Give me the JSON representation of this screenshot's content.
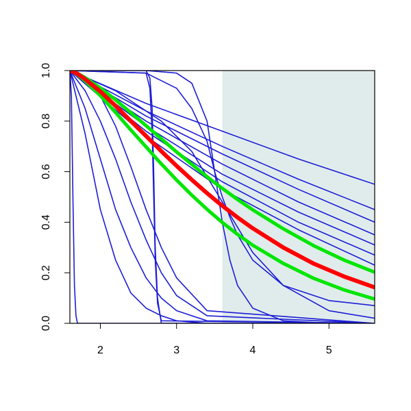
{
  "chart_data": {
    "type": "line",
    "xlim": [
      1.6,
      5.6
    ],
    "ylim": [
      0,
      1
    ],
    "xticks": [
      2,
      3,
      4,
      5
    ],
    "yticks": [
      {
        "value": 0,
        "label": "0.0"
      },
      {
        "value": 0.2,
        "label": "0.2"
      },
      {
        "value": 0.4,
        "label": "0.4"
      },
      {
        "value": 0.6,
        "label": "0.6"
      },
      {
        "value": 0.8,
        "label": "0.8"
      },
      {
        "value": 1,
        "label": "1.0"
      }
    ],
    "shaded_region": {
      "x": [
        3.6,
        5.6
      ],
      "color": "#e0ecec"
    },
    "series": [
      {
        "color": "#1c1cd6",
        "width": 1.6,
        "x": [
          1.6,
          2.6,
          3.6,
          4.6,
          5.6
        ],
        "values": [
          1,
          0.87,
          0.76,
          0.65,
          0.55
        ]
      },
      {
        "color": "#1c1cd6",
        "width": 1.6,
        "x": [
          1.6,
          2.6,
          3.6,
          4.6,
          5.6
        ],
        "values": [
          1,
          0.84,
          0.7,
          0.57,
          0.45
        ]
      },
      {
        "color": "#1c1cd6",
        "width": 1.6,
        "x": [
          1.6,
          2.6,
          3.6,
          4.6,
          5.6
        ],
        "values": [
          1,
          0.82,
          0.67,
          0.53,
          0.4
        ]
      },
      {
        "color": "#1c1cd6",
        "width": 1.6,
        "x": [
          1.6,
          2.6,
          3.6,
          4.6,
          5.6
        ],
        "values": [
          1,
          0.8,
          0.63,
          0.48,
          0.35
        ]
      },
      {
        "color": "#1c1cd6",
        "width": 1.6,
        "x": [
          1.6,
          2.6,
          3.6,
          4.6,
          5.6
        ],
        "values": [
          1,
          0.78,
          0.59,
          0.44,
          0.31
        ]
      },
      {
        "color": "#1c1cd6",
        "width": 1.6,
        "x": [
          1.6,
          2.6,
          3.6,
          4.6,
          5.6
        ],
        "values": [
          1,
          0.76,
          0.56,
          0.4,
          0.27
        ]
      },
      {
        "color": "#1c1cd6",
        "width": 1.6,
        "x": [
          1.6,
          2.6,
          3.6,
          4.6,
          5.6
        ],
        "values": [
          1,
          0.74,
          0.53,
          0.37,
          0.23
        ]
      },
      {
        "color": "#1c1cd6",
        "width": 1.6,
        "x": [
          1.6,
          2.6,
          3.0,
          3.2,
          3.4,
          3.5,
          3.6,
          3.7,
          3.8,
          4.0,
          4.4,
          5.0,
          5.6
        ],
        "values": [
          1,
          1,
          0.99,
          0.95,
          0.8,
          0.6,
          0.4,
          0.25,
          0.15,
          0.06,
          0.01,
          0,
          0
        ]
      },
      {
        "color": "#1c1cd6",
        "width": 1.6,
        "x": [
          1.6,
          2.6,
          3.0,
          3.2,
          3.4,
          3.5,
          3.6,
          3.7,
          3.8,
          4.0,
          4.4,
          5.0,
          5.6
        ],
        "values": [
          1,
          0.99,
          0.93,
          0.85,
          0.72,
          0.6,
          0.5,
          0.42,
          0.35,
          0.25,
          0.15,
          0.09,
          0.07
        ]
      },
      {
        "color": "#1c1cd6",
        "width": 1.6,
        "x": [
          1.6,
          2.6,
          2.65,
          2.68,
          2.7,
          2.72,
          2.75,
          2.8,
          5.6
        ],
        "values": [
          1,
          1,
          0.97,
          0.85,
          0.6,
          0.3,
          0.1,
          0,
          0
        ]
      },
      {
        "color": "#1c1cd6",
        "width": 1.6,
        "x": [
          1.6,
          2.6,
          2.65,
          2.68,
          2.7,
          2.72,
          2.75,
          2.8,
          5.6
        ],
        "values": [
          1,
          0.99,
          0.93,
          0.75,
          0.5,
          0.25,
          0.08,
          0.01,
          0
        ]
      },
      {
        "color": "#1c1cd6",
        "width": 1.6,
        "x": [
          1.6,
          1.62,
          1.64,
          1.66,
          1.68,
          1.7,
          5.6
        ],
        "values": [
          1,
          0.9,
          0.5,
          0.15,
          0.03,
          0,
          0
        ]
      },
      {
        "color": "#1c1cd6",
        "width": 1.6,
        "x": [
          1.6,
          1.8,
          2.0,
          2.2,
          2.4,
          2.6,
          2.8,
          3.0,
          3.4,
          5.6
        ],
        "values": [
          1,
          0.75,
          0.45,
          0.25,
          0.12,
          0.06,
          0.03,
          0.01,
          0,
          0
        ]
      },
      {
        "color": "#1c1cd6",
        "width": 1.6,
        "x": [
          1.6,
          1.8,
          2.0,
          2.2,
          2.4,
          2.6,
          2.8,
          3.0,
          3.4,
          5.6
        ],
        "values": [
          1,
          0.85,
          0.65,
          0.45,
          0.3,
          0.18,
          0.1,
          0.05,
          0.01,
          0
        ]
      },
      {
        "color": "#1c1cd6",
        "width": 1.6,
        "x": [
          1.6,
          1.8,
          2.0,
          2.2,
          2.4,
          2.6,
          2.8,
          3.0,
          3.4,
          5.6
        ],
        "values": [
          1,
          0.92,
          0.8,
          0.65,
          0.48,
          0.33,
          0.2,
          0.11,
          0.03,
          0
        ]
      },
      {
        "color": "#1c1cd6",
        "width": 1.6,
        "x": [
          1.6,
          1.8,
          2.0,
          2.2,
          2.4,
          2.6,
          2.8,
          3.0,
          3.4,
          5.6
        ],
        "values": [
          1,
          0.97,
          0.9,
          0.78,
          0.62,
          0.45,
          0.3,
          0.18,
          0.05,
          0
        ]
      },
      {
        "color": "#1c1cd6",
        "width": 1.6,
        "x": [
          1.6,
          2.2,
          2.8,
          3.2,
          3.6,
          4.0,
          4.4,
          5.0,
          5.6
        ],
        "values": [
          1,
          0.92,
          0.8,
          0.68,
          0.48,
          0.28,
          0.15,
          0.05,
          0.02
        ]
      },
      {
        "color": "#00e600",
        "width": 5,
        "x": [
          1.6,
          1.65,
          1.7,
          1.8,
          2.0,
          2.2,
          2.4,
          2.6,
          2.65,
          2.7,
          2.75,
          2.8,
          3.0,
          3.2,
          3.4,
          3.5,
          3.6,
          3.8,
          4.0,
          4.4,
          4.8,
          5.2,
          5.6
        ],
        "values": [
          1,
          0.996,
          0.989,
          0.972,
          0.931,
          0.884,
          0.833,
          0.782,
          0.769,
          0.756,
          0.743,
          0.73,
          0.678,
          0.629,
          0.58,
          0.557,
          0.534,
          0.49,
          0.449,
          0.374,
          0.307,
          0.25,
          0.202
        ]
      },
      {
        "color": "#00e600",
        "width": 5,
        "x": [
          1.6,
          1.65,
          1.7,
          1.8,
          2.0,
          2.2,
          2.4,
          2.6,
          2.65,
          2.7,
          2.75,
          2.8,
          3.0,
          3.2,
          3.4,
          3.5,
          3.6,
          3.8,
          4.0,
          4.4,
          4.8,
          5.2,
          5.6
        ],
        "values": [
          1,
          0.994,
          0.984,
          0.959,
          0.901,
          0.834,
          0.765,
          0.698,
          0.681,
          0.664,
          0.647,
          0.631,
          0.567,
          0.507,
          0.451,
          0.425,
          0.399,
          0.352,
          0.309,
          0.237,
          0.178,
          0.132,
          0.096
        ]
      },
      {
        "color": "#ff0000",
        "width": 6,
        "x": [
          1.6,
          1.65,
          1.7,
          1.8,
          2.0,
          2.2,
          2.4,
          2.6,
          2.65,
          2.7,
          2.75,
          2.8,
          3.0,
          3.2,
          3.4,
          3.5,
          3.6,
          3.8,
          4.0,
          4.4,
          4.8,
          5.2,
          5.6
        ],
        "values": [
          1,
          0.995,
          0.987,
          0.966,
          0.917,
          0.86,
          0.8,
          0.741,
          0.726,
          0.711,
          0.696,
          0.681,
          0.623,
          0.568,
          0.515,
          0.49,
          0.465,
          0.419,
          0.376,
          0.3,
          0.236,
          0.185,
          0.142
        ]
      }
    ]
  }
}
